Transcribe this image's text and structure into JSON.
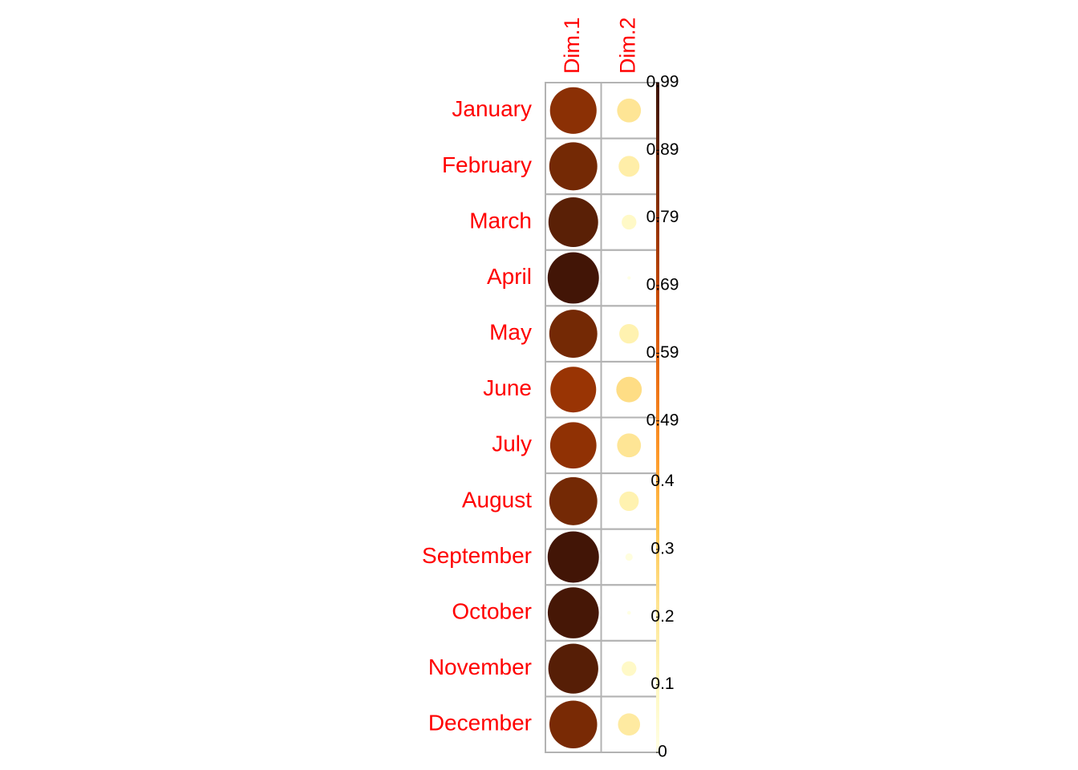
{
  "chart_data": {
    "type": "corrplot",
    "categories": [
      "January",
      "February",
      "March",
      "April",
      "May",
      "June",
      "July",
      "August",
      "September",
      "October",
      "November",
      "December"
    ],
    "series": [
      {
        "name": "Dim.1",
        "values": [
          0.8,
          0.85,
          0.91,
          0.97,
          0.85,
          0.77,
          0.79,
          0.85,
          0.97,
          0.96,
          0.92,
          0.84
        ]
      },
      {
        "name": "Dim.2",
        "values": [
          0.21,
          0.16,
          0.08,
          0.004,
          0.14,
          0.24,
          0.21,
          0.14,
          0.02,
          0.005,
          0.08,
          0.18
        ]
      }
    ],
    "colors": [
      "#FFFFE5",
      "#FFF7BC",
      "#FEE391",
      "#FEC44F",
      "#FE9929",
      "#EC7014",
      "#CC4C02",
      "#993404",
      "#662506",
      "#3A1206"
    ],
    "label_color": "#FF0000",
    "ylim": [
      0,
      0.99
    ],
    "yticks": [
      0,
      0.1,
      0.2,
      0.3,
      0.4,
      0.49,
      0.59,
      0.69,
      0.79,
      0.89,
      0.99
    ]
  }
}
